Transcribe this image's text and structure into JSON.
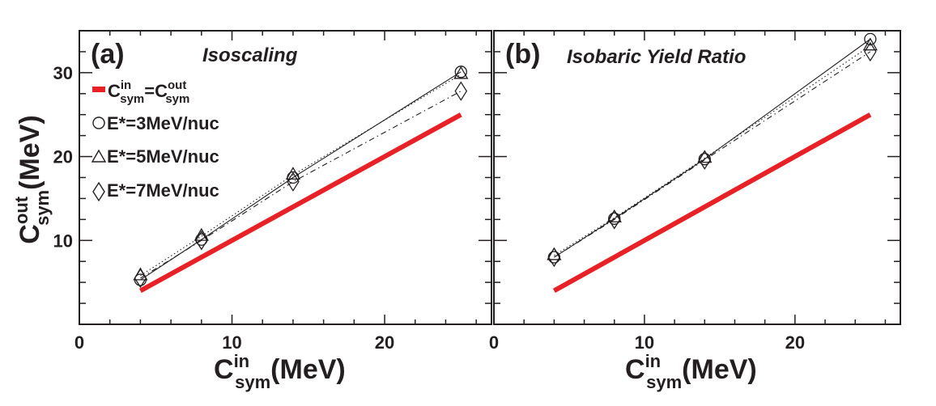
{
  "chart_data": [
    {
      "type": "line",
      "panel_label": "(a)",
      "title": "Isoscaling",
      "xlabel": {
        "main": "C",
        "sup": "in",
        "sub": "sym",
        "unit": "(MeV)"
      },
      "ylabel": {
        "main": "C",
        "sup": "out",
        "sub": "sym",
        "unit": "(MeV)"
      },
      "xlim": [
        0,
        27
      ],
      "ylim": [
        0,
        35
      ],
      "xticks": [
        "0",
        "10",
        "20"
      ],
      "yticks": [
        "10",
        "20",
        "30"
      ],
      "x": [
        4,
        8,
        14,
        25
      ],
      "reference": {
        "name": "Csym_in = Csym_out",
        "color": "#e82127",
        "x": [
          4,
          25
        ],
        "y": [
          4,
          25
        ]
      },
      "legend": {
        "placement": "top-left",
        "entries": [
          {
            "parts": {
              "a": "C",
              "a_sup": "in",
              "a_sub": "sym",
              "eq": "=",
              "b": "C",
              "b_sup": "out",
              "b_sub": "sym"
            }
          },
          {
            "label": "E*=3MeV/nuc",
            "marker": "circle"
          },
          {
            "label": "E*=5MeV/nuc",
            "marker": "triangle"
          },
          {
            "label": "E*=7MeV/nuc",
            "marker": "diamond"
          }
        ]
      },
      "series": [
        {
          "name": "E*=3MeV/nuc",
          "marker": "circle",
          "line": "solid",
          "values": [
            5.3,
            10.1,
            17.5,
            30.1
          ]
        },
        {
          "name": "E*=5MeV/nuc",
          "marker": "triangle",
          "line": "dotted",
          "values": [
            5.8,
            10.5,
            17.8,
            29.8
          ]
        },
        {
          "name": "E*=7MeV/nuc",
          "marker": "diamond",
          "line": "dashdot",
          "values": [
            5.5,
            10.0,
            17.0,
            27.8
          ]
        }
      ]
    },
    {
      "type": "line",
      "panel_label": "(b)",
      "title": "Isobaric Yield Ratio",
      "xlabel": {
        "main": "C",
        "sup": "in",
        "sub": "sym",
        "unit": "(MeV)"
      },
      "xlim": [
        0,
        27
      ],
      "ylim": [
        0,
        35
      ],
      "xticks": [
        "0",
        "10",
        "20"
      ],
      "x": [
        4,
        8,
        14,
        25
      ],
      "reference": {
        "name": "Csym_in = Csym_out",
        "color": "#e82127",
        "x": [
          4,
          25
        ],
        "y": [
          4,
          25
        ]
      },
      "series": [
        {
          "name": "E*=3MeV/nuc",
          "marker": "circle",
          "line": "solid",
          "values": [
            8.0,
            12.6,
            19.7,
            34.0
          ]
        },
        {
          "name": "E*=5MeV/nuc",
          "marker": "triangle",
          "line": "dotted",
          "values": [
            8.2,
            12.7,
            19.8,
            33.2
          ]
        },
        {
          "name": "E*=7MeV/nuc",
          "marker": "diamond",
          "line": "dashdot",
          "values": [
            8.0,
            12.5,
            19.6,
            32.5
          ]
        }
      ]
    }
  ]
}
